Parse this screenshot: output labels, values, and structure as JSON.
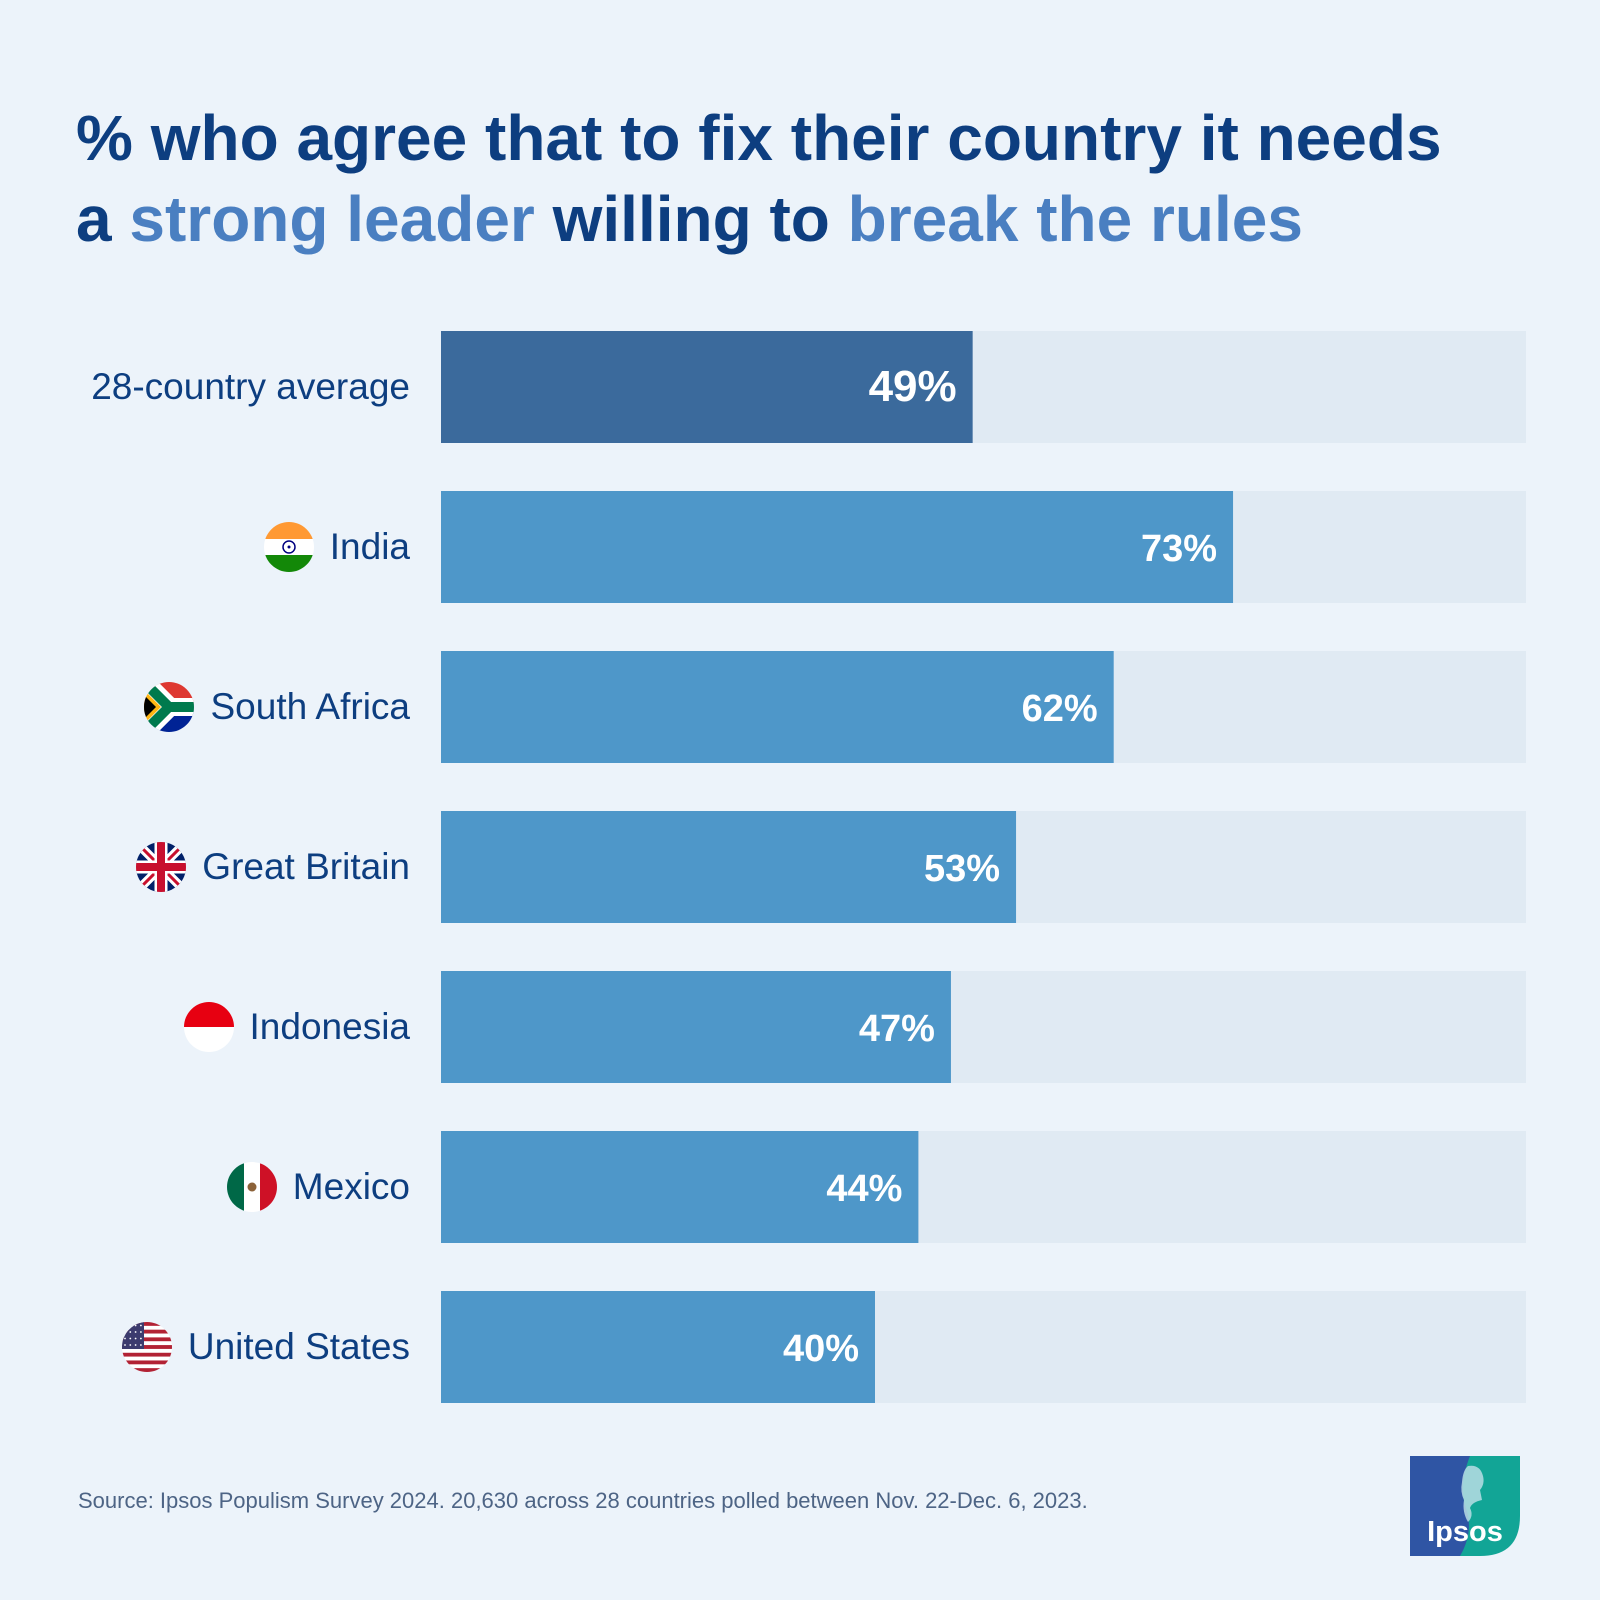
{
  "title": {
    "line1": "% who agree that to fix their country it needs",
    "a": "a ",
    "hl1": "strong leader",
    "mid": " willing to ",
    "hl2": "break the rules"
  },
  "chart_data": {
    "type": "bar",
    "orientation": "horizontal",
    "categories": [
      "28-country average",
      "India",
      "South Africa",
      "Great Britain",
      "Indonesia",
      "Mexico",
      "United States"
    ],
    "values": [
      49,
      73,
      62,
      53,
      47,
      44,
      40
    ],
    "value_labels": [
      "49%",
      "73%",
      "62%",
      "53%",
      "47%",
      "44%",
      "40%"
    ],
    "flags": [
      null,
      "india-flag-icon",
      "south-africa-flag-icon",
      "great-britain-flag-icon",
      "indonesia-flag-icon",
      "mexico-flag-icon",
      "united-states-flag-icon"
    ],
    "xlim": [
      0,
      100
    ],
    "colors": {
      "average_bar": "#3b6a9c",
      "country_bar": "#4e97c9",
      "track": "#e0eaf3",
      "value_text": "#ffffff",
      "label_text": "#0d3e80"
    }
  },
  "source": "Source: Ipsos Populism Survey 2024. 20,630 across 28 countries polled between Nov. 22-Dec. 6, 2023.",
  "logo": {
    "text": "Ipsos"
  }
}
